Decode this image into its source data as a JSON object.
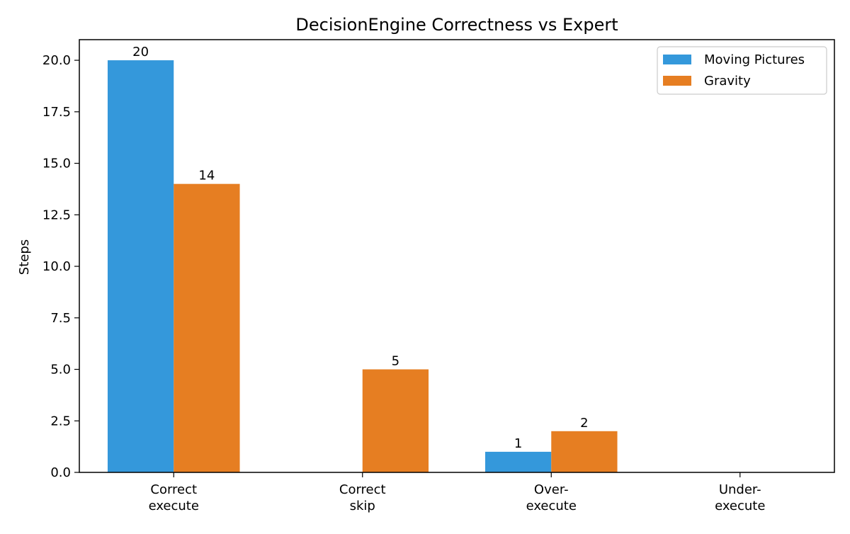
{
  "chart_data": {
    "type": "bar",
    "title": "DecisionEngine Correctness vs Expert",
    "xlabel": "",
    "ylabel": "Steps",
    "categories": [
      [
        "Correct",
        "execute"
      ],
      [
        "Correct",
        "skip"
      ],
      [
        "Over-",
        "execute"
      ],
      [
        "Under-",
        "execute"
      ]
    ],
    "series": [
      {
        "name": "Moving Pictures",
        "color": "#3498db",
        "values": [
          20,
          0,
          1,
          0
        ]
      },
      {
        "name": "Gravity",
        "color": "#e67e22",
        "values": [
          14,
          5,
          2,
          0
        ]
      }
    ],
    "ylim": [
      0,
      21
    ],
    "yticks": [
      "0.0",
      "2.5",
      "5.0",
      "7.5",
      "10.0",
      "12.5",
      "15.0",
      "17.5",
      "20.0"
    ],
    "grid": false,
    "legend_position": "top-right"
  }
}
